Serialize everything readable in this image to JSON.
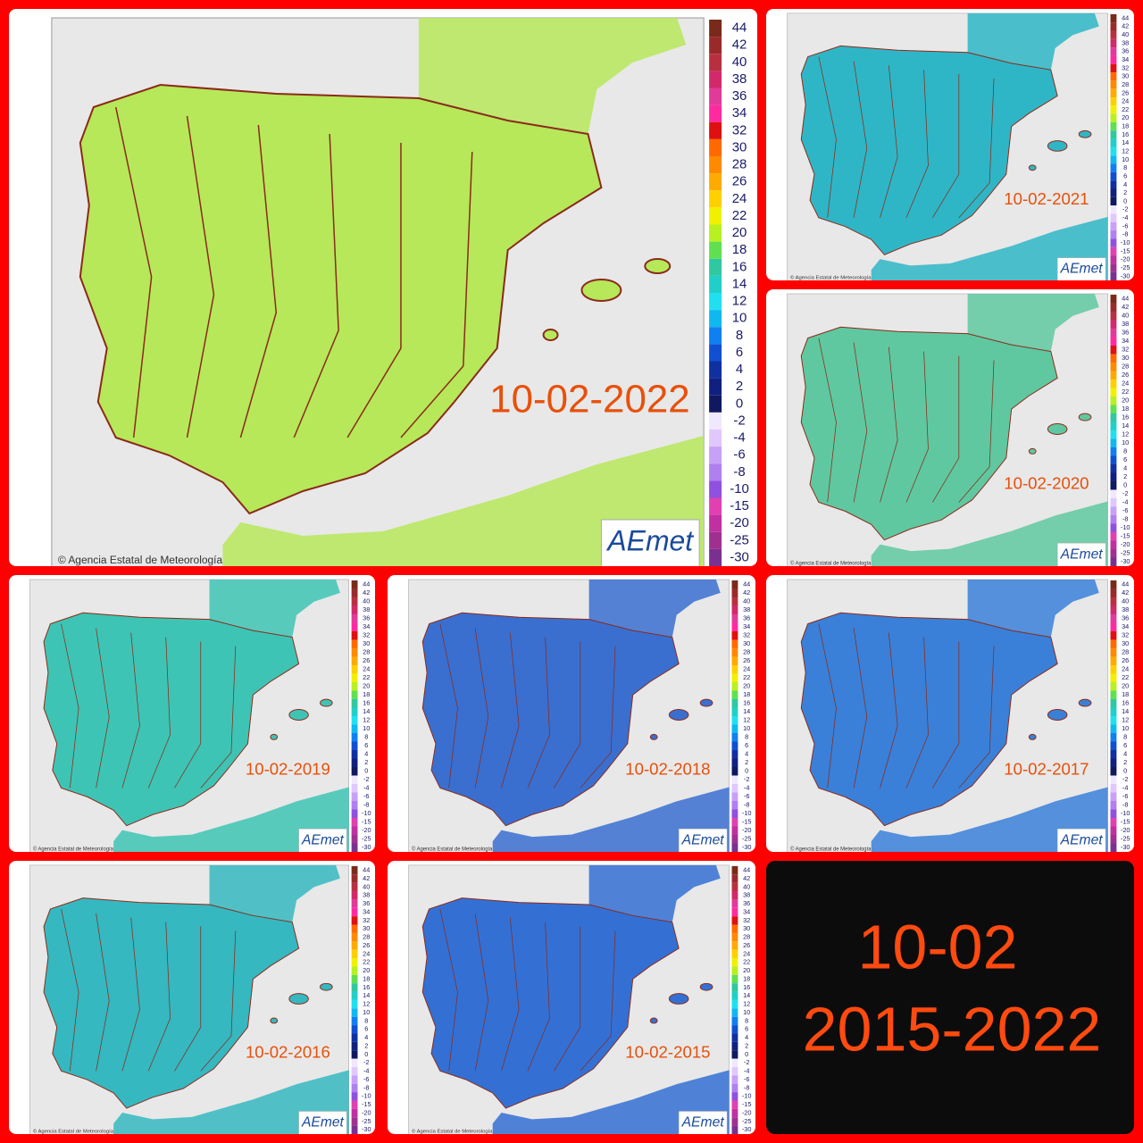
{
  "source": "© Agencia Estatal de Meteorología",
  "logo": "AEmet",
  "legend": {
    "labels": [
      44,
      42,
      40,
      38,
      36,
      34,
      32,
      30,
      28,
      26,
      24,
      22,
      20,
      18,
      16,
      14,
      12,
      10,
      8,
      6,
      4,
      2,
      0,
      -2,
      -4,
      -6,
      -8,
      -10,
      -15,
      -20,
      -25,
      -30
    ]
  },
  "panels": [
    {
      "date": "10-02-2022",
      "color": "#b6e85a"
    },
    {
      "date": "10-02-2021",
      "color": "#2fb6c6"
    },
    {
      "date": "10-02-2020",
      "color": "#5fc8a0"
    },
    {
      "date": "10-02-2019",
      "color": "#3ec4b4"
    },
    {
      "date": "10-02-2018",
      "color": "#3a6fd0"
    },
    {
      "date": "10-02-2017",
      "color": "#3a80d8"
    },
    {
      "date": "10-02-2016",
      "color": "#35b8c0"
    },
    {
      "date": "10-02-2015",
      "color": "#3470d4"
    }
  ],
  "summary": {
    "line1": "10-02",
    "line2": "2015-2022"
  }
}
